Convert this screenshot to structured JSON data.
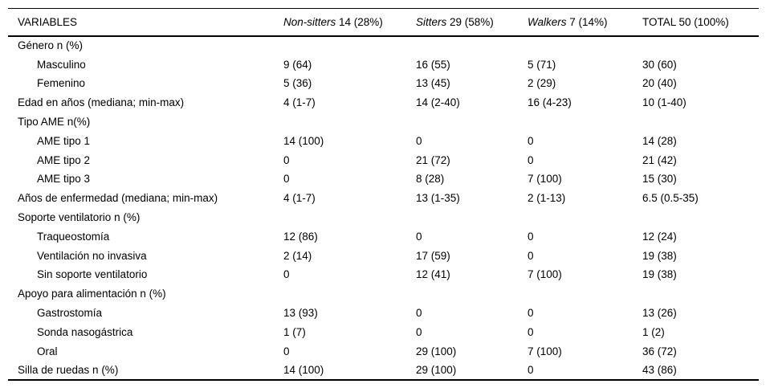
{
  "page": {
    "background": "#ffffff",
    "rule_color": "#000000",
    "text_color": "#000000"
  },
  "table": {
    "header": {
      "variables": "VARIABLES",
      "groups": [
        {
          "italic": "Non-sitters",
          "rest": " 14 (28%)"
        },
        {
          "italic": "Sitters",
          "rest": " 29 (58%)"
        },
        {
          "italic": "Walkers",
          "rest": " 7 (14%)"
        }
      ],
      "total": "TOTAL 50 (100%)"
    },
    "rows": [
      {
        "label": "Género n (%)",
        "indent": false,
        "values": [
          "",
          "",
          "",
          ""
        ]
      },
      {
        "label": "Masculino",
        "indent": true,
        "values": [
          "9 (64)",
          "16 (55)",
          "5 (71)",
          "30 (60)"
        ]
      },
      {
        "label": "Femenino",
        "indent": true,
        "values": [
          "5 (36)",
          "13 (45)",
          "2 (29)",
          "20 (40)"
        ]
      },
      {
        "label": "Edad en años (mediana; min-max)",
        "indent": false,
        "values": [
          "4 (1-7)",
          "14 (2-40)",
          "16 (4-23)",
          "10 (1-40)"
        ]
      },
      {
        "label": "Tipo AME n(%)",
        "indent": false,
        "values": [
          "",
          "",
          "",
          ""
        ]
      },
      {
        "label": "AME tipo 1",
        "indent": true,
        "values": [
          "14 (100)",
          "0",
          "0",
          "14 (28)"
        ]
      },
      {
        "label": "AME tipo 2",
        "indent": true,
        "values": [
          "0",
          "21 (72)",
          "0",
          "21 (42)"
        ]
      },
      {
        "label": "AME tipo 3",
        "indent": true,
        "values": [
          "0",
          "8 (28)",
          "7 (100)",
          "15 (30)"
        ]
      },
      {
        "label": "Años de enfermedad (mediana; min-max)",
        "indent": false,
        "values": [
          "4 (1-7)",
          "13 (1-35)",
          "2 (1-13)",
          "6.5 (0.5-35)"
        ]
      },
      {
        "label": "Soporte ventilatorio n (%)",
        "indent": false,
        "values": [
          "",
          "",
          "",
          ""
        ]
      },
      {
        "label": "Traqueostomía",
        "indent": true,
        "values": [
          "12 (86)",
          "0",
          "0",
          "12 (24)"
        ]
      },
      {
        "label": "Ventilación no invasiva",
        "indent": true,
        "values": [
          "2 (14)",
          "17 (59)",
          "0",
          "19 (38)"
        ]
      },
      {
        "label": "Sin soporte ventilatorio",
        "indent": true,
        "values": [
          "0",
          "12 (41)",
          "7 (100)",
          "19 (38)"
        ]
      },
      {
        "label": "Apoyo para alimentación n (%)",
        "indent": false,
        "values": [
          "",
          "",
          "",
          ""
        ]
      },
      {
        "label": "Gastrostomía",
        "indent": true,
        "values": [
          "13 (93)",
          "0",
          "0",
          "13 (26)"
        ]
      },
      {
        "label": "Sonda nasogástrica",
        "indent": true,
        "values": [
          "1 (7)",
          "0",
          "0",
          "1 (2)"
        ]
      },
      {
        "label": "Oral",
        "indent": true,
        "values": [
          "0",
          "29 (100)",
          "7 (100)",
          "36 (72)"
        ]
      },
      {
        "label": "Silla de ruedas n (%)",
        "indent": false,
        "values": [
          "14 (100)",
          "29 (100)",
          "0",
          "43 (86)"
        ]
      }
    ]
  }
}
